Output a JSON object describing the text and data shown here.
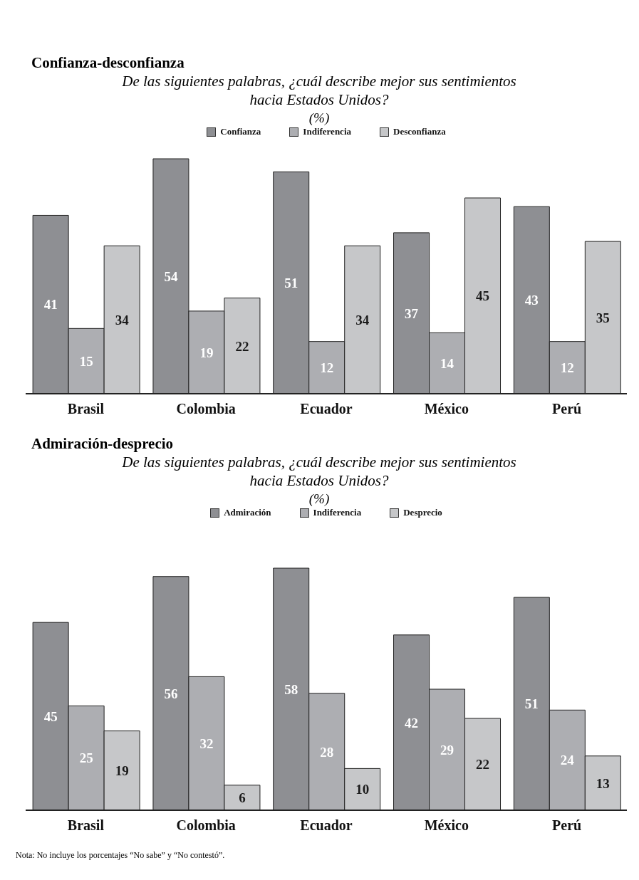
{
  "chart_data": [
    {
      "type": "bar",
      "title": "Confianza-desconfianza",
      "subtitle": "De las siguientes palabras, ¿cuál describe mejor sus sentimientos hacia Estados Unidos?",
      "ylabel": "(%)",
      "categories": [
        "Brasil",
        "Colombia",
        "Ecuador",
        "México",
        "Perú"
      ],
      "series": [
        {
          "name": "Confianza",
          "color": "#8e8f93",
          "values": [
            41,
            54,
            51,
            37,
            43
          ]
        },
        {
          "name": "Indiferencia",
          "color": "#adaeb2",
          "values": [
            15,
            19,
            12,
            14,
            12
          ]
        },
        {
          "name": "Desconfianza",
          "color": "#c6c7c9",
          "values": [
            34,
            22,
            34,
            45,
            35
          ]
        }
      ],
      "data_labels": true,
      "legend": "top",
      "grid": false
    },
    {
      "type": "bar",
      "title": "Admiración-desprecio",
      "subtitle": "De las siguientes palabras, ¿cuál describe mejor sus sentimientos hacia Estados Unidos?",
      "ylabel": "(%)",
      "categories": [
        "Brasil",
        "Colombia",
        "Ecuador",
        "México",
        "Perú"
      ],
      "series": [
        {
          "name": "Admiración",
          "color": "#8e8f93",
          "values": [
            45,
            56,
            58,
            42,
            51
          ]
        },
        {
          "name": "Indiferencia",
          "color": "#adaeb2",
          "values": [
            25,
            32,
            28,
            29,
            24
          ]
        },
        {
          "name": "Desprecio",
          "color": "#c6c7c9",
          "values": [
            19,
            6,
            10,
            22,
            13
          ]
        }
      ],
      "data_labels": true,
      "legend": "top",
      "grid": false,
      "annotations": [
        "Nota: No incluye los porcentajes “No sabe” y “No contestó”."
      ]
    }
  ]
}
